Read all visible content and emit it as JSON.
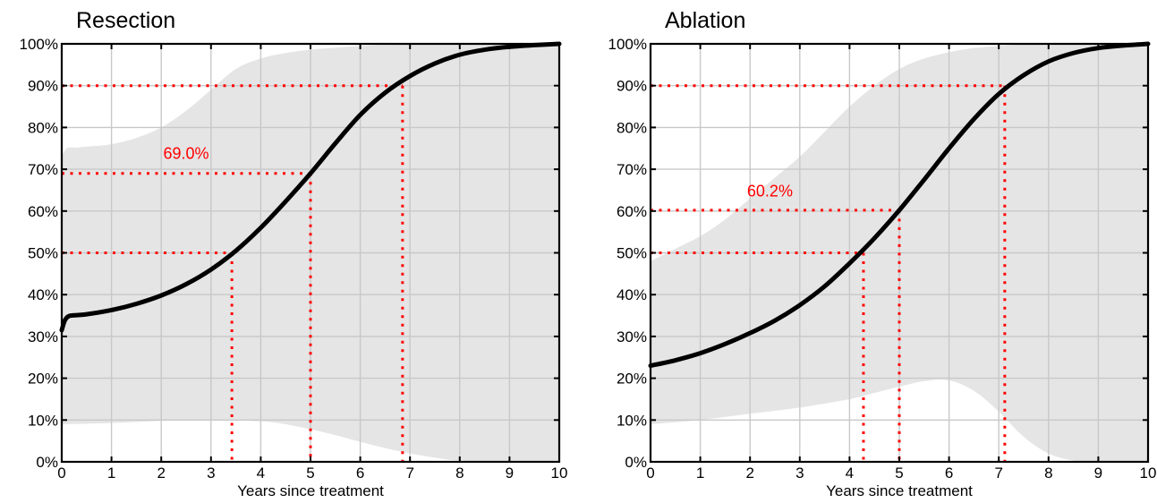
{
  "chart_data": [
    {
      "type": "line",
      "title": "Resection",
      "xlabel": "Years since treatment",
      "ylabel": "",
      "xlim": [
        0,
        10
      ],
      "ylim": [
        0,
        100
      ],
      "x_ticks": [
        "0",
        "1",
        "2",
        "3",
        "4",
        "5",
        "6",
        "7",
        "8",
        "9",
        "10"
      ],
      "y_ticks": [
        "0%",
        "10%",
        "20%",
        "30%",
        "40%",
        "50%",
        "60%",
        "70%",
        "80%",
        "90%",
        "100%"
      ],
      "grid": true,
      "series": [
        {
          "x": [
            0,
            0.05,
            0.1,
            0.15,
            0.2,
            0.5,
            1,
            1.5,
            2,
            2.5,
            3,
            3.5,
            4,
            4.5,
            5,
            5.5,
            6,
            6.5,
            7,
            7.5,
            8,
            8.5,
            9,
            9.5,
            10
          ],
          "values": [
            31.5,
            33.5,
            34.5,
            34.9,
            35.0,
            35.3,
            36.3,
            37.8,
            39.8,
            42.5,
            46.0,
            50.5,
            56.0,
            62.3,
            69.0,
            76.2,
            83.0,
            88.3,
            92.3,
            95.3,
            97.4,
            98.6,
            99.3,
            99.7,
            100
          ]
        }
      ],
      "band_upper": {
        "x": [
          0,
          0.1,
          0.3,
          0.6,
          1,
          1.5,
          2,
          2.5,
          3,
          3.5,
          4,
          4.5,
          5,
          5.5,
          6,
          6.5,
          7,
          7.5,
          8,
          9,
          10
        ],
        "values": [
          73,
          75,
          75.2,
          75.5,
          76,
          77.5,
          80,
          84,
          89,
          94,
          96.5,
          97.8,
          98.6,
          99.1,
          99.5,
          99.7,
          99.8,
          99.9,
          100,
          100,
          100
        ]
      },
      "band_lower": {
        "x": [
          0,
          1,
          2,
          3,
          4,
          4.5,
          5,
          5.5,
          6,
          6.5,
          7,
          7.5,
          8,
          9,
          10
        ],
        "values": [
          9,
          9.3,
          9.8,
          10,
          9.7,
          9,
          7.8,
          6.4,
          4.8,
          3.3,
          2,
          1,
          0.3,
          0,
          0
        ]
      },
      "reference_lines": [
        {
          "y": 50,
          "x": 3.42
        },
        {
          "y": 69,
          "x": 5
        },
        {
          "y": 90,
          "x": 6.85
        }
      ],
      "annotations": [
        {
          "text": "69.0%",
          "x": 2.5,
          "y": 72.5
        }
      ]
    },
    {
      "type": "line",
      "title": "Ablation",
      "xlabel": "Years since treatment",
      "ylabel": "",
      "xlim": [
        0,
        10
      ],
      "ylim": [
        0,
        100
      ],
      "x_ticks": [
        "0",
        "1",
        "2",
        "3",
        "4",
        "5",
        "6",
        "7",
        "8",
        "9",
        "10"
      ],
      "y_ticks": [
        "0%",
        "10%",
        "20%",
        "30%",
        "40%",
        "50%",
        "60%",
        "70%",
        "80%",
        "90%",
        "100%"
      ],
      "grid": true,
      "series": [
        {
          "x": [
            0,
            0.5,
            1,
            1.5,
            2,
            2.5,
            3,
            3.5,
            4,
            4.5,
            5,
            5.5,
            6,
            6.5,
            7,
            7.5,
            8,
            8.5,
            9,
            9.5,
            10
          ],
          "values": [
            23,
            24.3,
            26,
            28.2,
            30.8,
            33.8,
            37.5,
            42,
            47.5,
            53.5,
            60.2,
            67.5,
            75,
            82,
            88,
            92.5,
            95.8,
            97.8,
            99,
            99.6,
            100
          ]
        }
      ],
      "band_upper": {
        "x": [
          0,
          0.5,
          1,
          1.5,
          2,
          2.5,
          3,
          3.5,
          4,
          4.5,
          5,
          5.5,
          6,
          6.5,
          7,
          7.5,
          8,
          9,
          10
        ],
        "values": [
          48,
          51,
          54,
          58,
          63,
          68,
          73,
          79,
          85,
          90,
          94,
          96.5,
          98,
          99,
          99.5,
          99.8,
          100,
          100,
          100
        ]
      },
      "band_lower": {
        "x": [
          0,
          1,
          2,
          3,
          4,
          4.5,
          5,
          5.5,
          6,
          6.5,
          7,
          7.5,
          8,
          8.5,
          9,
          10
        ],
        "values": [
          9,
          10,
          11.5,
          13,
          15,
          16.5,
          18,
          19.3,
          19.5,
          17,
          12,
          6,
          2,
          0.3,
          0,
          0
        ]
      },
      "reference_lines": [
        {
          "y": 50,
          "x": 4.28
        },
        {
          "y": 60.2,
          "x": 5
        },
        {
          "y": 90,
          "x": 7.12
        }
      ],
      "annotations": [
        {
          "text": "60.2%",
          "x": 2.4,
          "y": 63.5
        }
      ]
    }
  ],
  "colors": {
    "curve": "#000000",
    "band": "#e5e5e5",
    "grid": "#c8c8c8",
    "reference": "#ff0000",
    "axis": "#000000"
  }
}
